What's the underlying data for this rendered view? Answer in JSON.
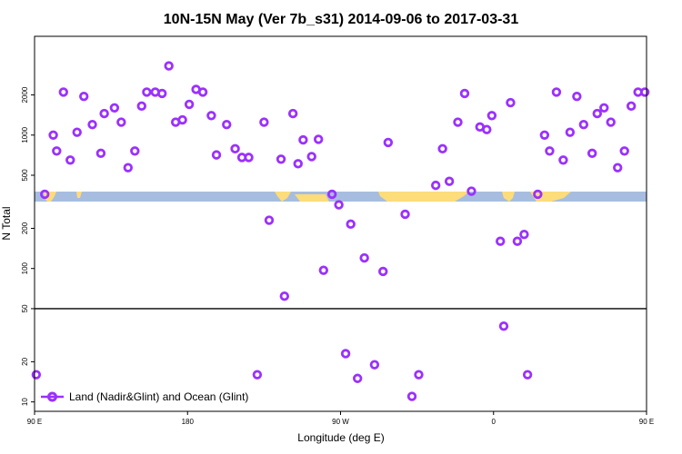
{
  "colors": {
    "point": "#9b30ff",
    "ocean_band": "#a7bde0",
    "land": "#fddc7a",
    "frame": "#000000",
    "threshold_line": "#000000"
  },
  "chart_data": {
    "type": "scatter",
    "title": "10N-15N May (Ver 7b_s31)   2014-09-06 to 2017-03-31",
    "xlabel": "Longitude (deg E)",
    "ylabel": "N Total",
    "x_scale": "linear",
    "y_scale": "log",
    "xlim": [
      90,
      450
    ],
    "ylim": [
      8.5,
      5500
    ],
    "x_ticks": [
      {
        "value": 90,
        "label": "90 E"
      },
      {
        "value": 180,
        "label": "180"
      },
      {
        "value": 270,
        "label": "90 W"
      },
      {
        "value": 360,
        "label": "0"
      },
      {
        "value": 450,
        "label": "90 E"
      },
      {
        "value": 540,
        "label": "180"
      }
    ],
    "y_ticks": [
      10,
      20,
      50,
      100,
      200,
      500,
      1000,
      2000
    ],
    "threshold_line": 50,
    "legend": {
      "position": "bottom-left",
      "entries": [
        {
          "label": "Land (Nadir&Glint) and Ocean (Glint)"
        }
      ]
    },
    "series": [
      {
        "name": "Land (Nadir&Glint) and Ocean (Glint)",
        "points": [
          [
            91,
            16
          ],
          [
            96,
            360
          ],
          [
            101,
            1000
          ],
          [
            103,
            760
          ],
          [
            107,
            2100
          ],
          [
            111,
            650
          ],
          [
            115,
            1050
          ],
          [
            119,
            1950
          ],
          [
            124,
            1200
          ],
          [
            129,
            730
          ],
          [
            131,
            1450
          ],
          [
            137,
            1600
          ],
          [
            141,
            1250
          ],
          [
            145,
            570
          ],
          [
            149,
            760
          ],
          [
            153,
            1650
          ],
          [
            156,
            2100
          ],
          [
            161,
            2100
          ],
          [
            165,
            2050
          ],
          [
            169,
            3300
          ],
          [
            173,
            1250
          ],
          [
            177,
            1300
          ],
          [
            181,
            1700
          ],
          [
            185,
            2200
          ],
          [
            189,
            2100
          ],
          [
            194,
            1400
          ],
          [
            197,
            710
          ],
          [
            203,
            1200
          ],
          [
            208,
            790
          ],
          [
            212,
            680
          ],
          [
            216,
            680
          ],
          [
            221,
            16
          ],
          [
            225,
            1250
          ],
          [
            228,
            230
          ],
          [
            235,
            660
          ],
          [
            237,
            62
          ],
          [
            242,
            1450
          ],
          [
            245,
            610
          ],
          [
            248,
            920
          ],
          [
            253,
            690
          ],
          [
            257,
            930
          ],
          [
            260,
            97
          ],
          [
            265,
            360
          ],
          [
            269,
            300
          ],
          [
            273,
            23
          ],
          [
            276,
            215
          ],
          [
            280,
            15
          ],
          [
            284,
            120
          ],
          [
            290,
            19
          ],
          [
            295,
            95
          ],
          [
            298,
            880
          ],
          [
            308,
            255
          ],
          [
            312,
            11
          ],
          [
            316,
            16
          ],
          [
            326,
            420
          ],
          [
            330,
            790
          ],
          [
            334,
            450
          ],
          [
            339,
            1250
          ],
          [
            343,
            2050
          ],
          [
            347,
            380
          ],
          [
            352,
            1150
          ],
          [
            356,
            1100
          ],
          [
            359,
            1400
          ],
          [
            364,
            160
          ],
          [
            366,
            37
          ],
          [
            370,
            1750
          ],
          [
            374,
            160
          ],
          [
            378,
            180
          ],
          [
            380,
            16
          ],
          [
            386,
            360
          ],
          [
            390,
            1000
          ],
          [
            393,
            760
          ],
          [
            397,
            2100
          ],
          [
            401,
            650
          ],
          [
            405,
            1050
          ],
          [
            409,
            1950
          ],
          [
            413,
            1200
          ],
          [
            418,
            730
          ],
          [
            421,
            1450
          ],
          [
            425,
            1600
          ],
          [
            429,
            1250
          ],
          [
            433,
            570
          ],
          [
            437,
            760
          ],
          [
            441,
            1650
          ],
          [
            445,
            2100
          ],
          [
            449,
            2100
          ]
        ]
      }
    ]
  }
}
